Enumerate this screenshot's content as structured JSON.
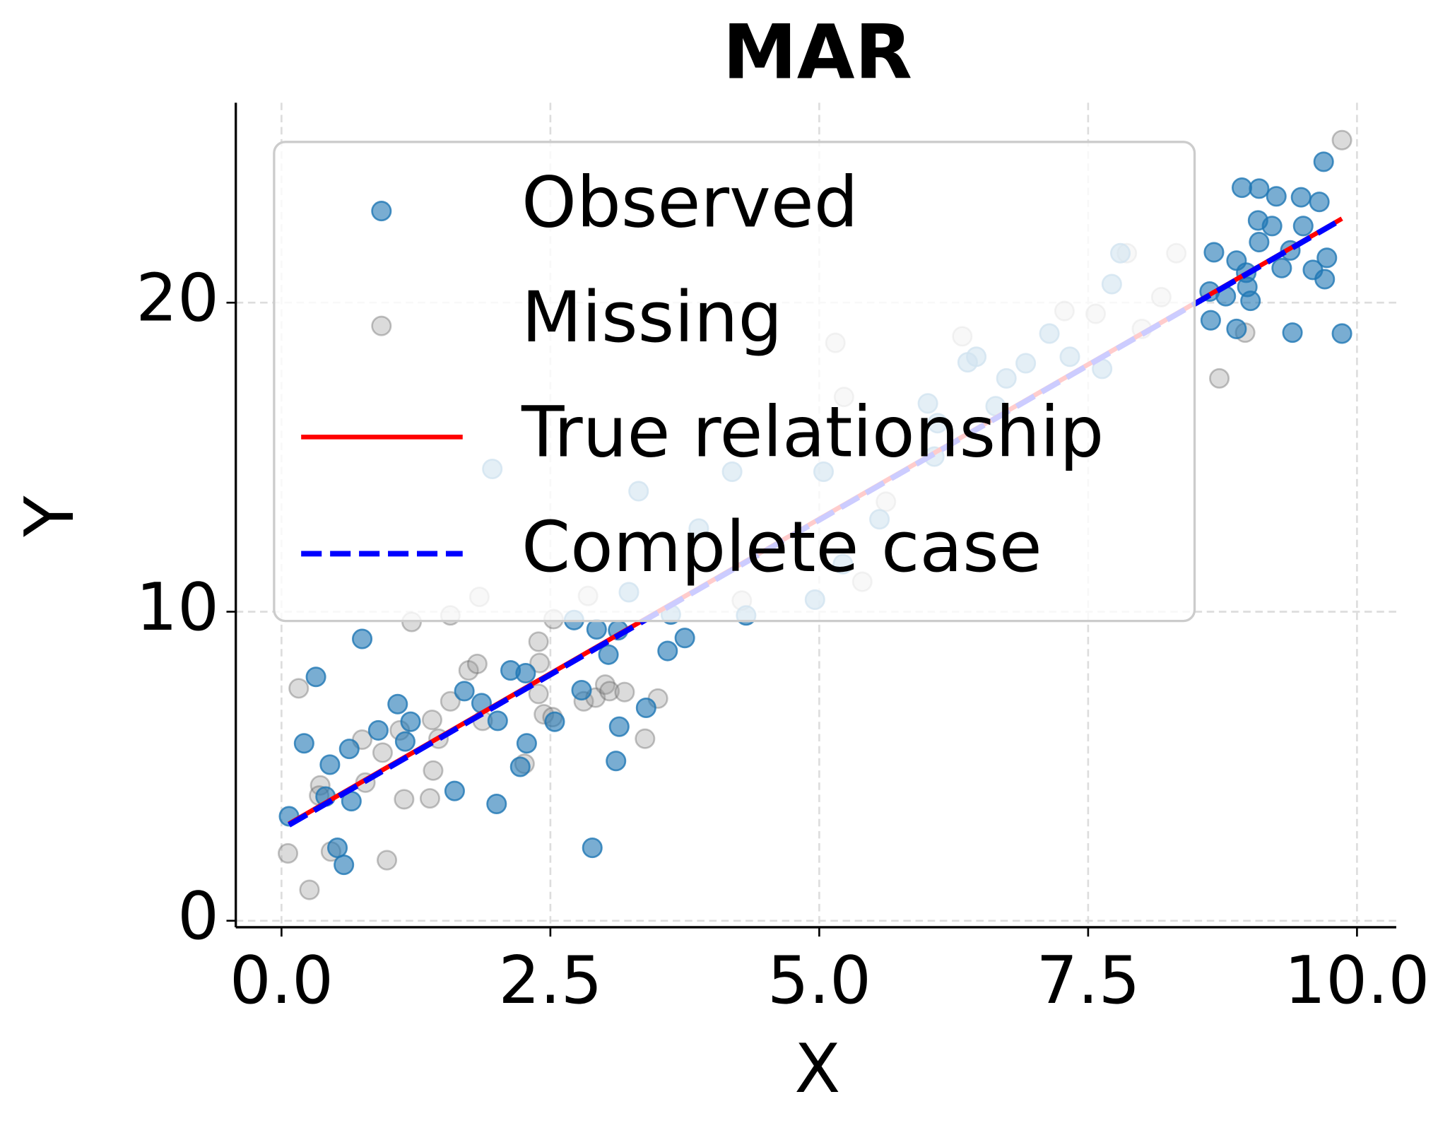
{
  "chart_data": {
    "type": "scatter",
    "title": "MAR",
    "x_label": "X",
    "y_label": "Y",
    "xlim": [
      -0.425,
      10.365
    ],
    "ylim": [
      -0.21,
      26.47
    ],
    "xticks": [
      {
        "value": 0,
        "label": "0.0"
      },
      2.5,
      {
        "value": 5,
        "label": "5.0"
      },
      7.5,
      {
        "value": 10,
        "label": "10.0"
      }
    ],
    "yticks": [
      0,
      10,
      20
    ],
    "grid": true,
    "legend": "upper left",
    "series": [
      {
        "name": "Missing",
        "type": "scatter",
        "color": "#999999",
        "x": [
          0.06,
          0.16,
          0.26,
          0.36,
          0.35,
          0.46,
          0.75,
          0.78,
          0.94,
          0.98,
          1.1,
          1.14,
          1.21,
          1.38,
          1.4,
          1.41,
          1.46,
          1.57,
          1.57,
          1.74,
          1.82,
          1.84,
          1.87,
          2.26,
          2.39,
          2.39,
          2.4,
          2.44,
          2.52,
          2.53,
          2.81,
          2.85,
          2.92,
          3.01,
          3.05,
          3.19,
          3.38,
          3.5,
          4.28,
          5.15,
          8.72,
          8.96,
          9.86,
          6.33,
          7.57,
          7.28,
          7.86,
          8.32,
          8.18,
          5.4,
          5.23,
          5.62,
          8.0
        ],
        "values": [
          2.18,
          7.52,
          1.0,
          4.38,
          4.05,
          2.24,
          5.86,
          4.47,
          5.44,
          1.96,
          6.16,
          3.93,
          9.67,
          3.96,
          6.5,
          4.86,
          5.89,
          9.88,
          7.1,
          8.1,
          8.31,
          10.48,
          6.47,
          5.08,
          9.03,
          7.34,
          8.34,
          6.68,
          6.59,
          9.76,
          7.1,
          10.51,
          7.22,
          7.64,
          7.43,
          7.4,
          5.89,
          7.19,
          10.36,
          18.7,
          17.55,
          19.03,
          25.26,
          18.91,
          19.64,
          19.73,
          21.6,
          21.6,
          20.18,
          10.97,
          16.95,
          13.56,
          19.15
        ]
      },
      {
        "name": "Observed",
        "type": "scatter",
        "color": "#1f77b4",
        "x": [
          0.07,
          0.21,
          0.32,
          0.41,
          0.45,
          0.52,
          0.58,
          0.63,
          0.65,
          0.75,
          0.9,
          1.08,
          1.15,
          1.2,
          1.61,
          1.7,
          1.86,
          2.0,
          2.01,
          2.13,
          2.22,
          2.27,
          2.28,
          2.54,
          2.72,
          2.79,
          2.89,
          2.93,
          3.04,
          3.11,
          3.13,
          3.14,
          3.39,
          3.59,
          3.75,
          4.32,
          8.64,
          8.67,
          8.63,
          8.78,
          8.88,
          8.88,
          8.93,
          8.97,
          8.98,
          9.01,
          9.08,
          9.09,
          9.09,
          9.21,
          9.25,
          9.3,
          9.38,
          9.4,
          9.48,
          9.5,
          9.59,
          9.65,
          9.69,
          9.7,
          9.72,
          9.86,
          1.96,
          4.19,
          3.32,
          3.23,
          3.62,
          3.88,
          4.96,
          5.04,
          5.22,
          5.56,
          6.01,
          6.07,
          6.1,
          6.38,
          6.46,
          6.64,
          6.74,
          6.92,
          7.14,
          7.33,
          7.72,
          7.8,
          7.63
        ],
        "values": [
          3.38,
          5.74,
          7.89,
          4.02,
          5.05,
          2.36,
          1.81,
          5.56,
          3.87,
          9.12,
          6.16,
          7.01,
          5.8,
          6.44,
          4.2,
          7.43,
          7.04,
          3.78,
          6.47,
          8.1,
          4.98,
          8.01,
          5.74,
          6.44,
          9.73,
          7.46,
          2.36,
          9.43,
          8.61,
          5.17,
          9.4,
          6.28,
          6.89,
          8.73,
          9.15,
          9.88,
          19.43,
          21.63,
          20.36,
          20.21,
          19.15,
          21.36,
          23.72,
          20.97,
          20.51,
          20.06,
          22.66,
          23.69,
          21.96,
          22.48,
          23.44,
          21.12,
          21.69,
          19.03,
          23.41,
          22.48,
          21.06,
          23.26,
          24.56,
          20.76,
          21.45,
          19.0,
          14.62,
          14.53,
          13.9,
          10.63,
          9.91,
          12.69,
          10.39,
          14.53,
          11.54,
          12.99,
          16.74,
          15.02,
          16.1,
          18.07,
          18.25,
          16.65,
          17.55,
          18.04,
          19.0,
          18.25,
          20.6,
          21.6,
          17.86
        ]
      },
      {
        "name": "True relationship",
        "type": "line",
        "linestyle": "solid",
        "color": "#ff0000",
        "x": [
          0.07,
          9.86
        ],
        "values": [
          3.14,
          22.72
        ]
      },
      {
        "name": "Complete case",
        "type": "line",
        "linestyle": "dashed",
        "color": "#0000ff",
        "x": [
          0.07,
          9.86
        ],
        "values": [
          3.1,
          22.7
        ]
      }
    ]
  }
}
